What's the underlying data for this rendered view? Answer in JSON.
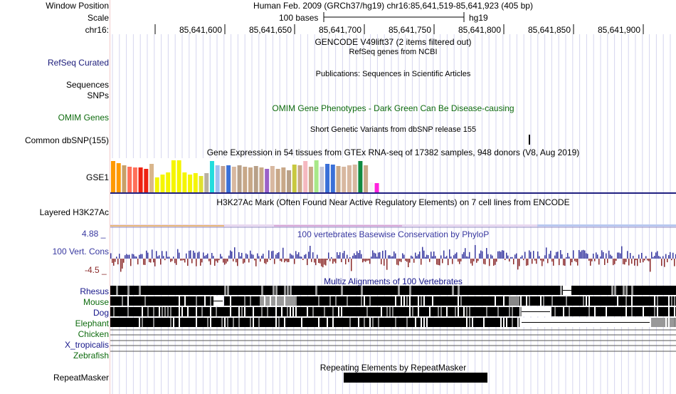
{
  "header": {
    "window_position_label": "Window Position",
    "window_position_value": "Human Feb. 2009 (GRCh37/hg19)   chr16:85,641,519-85,641,923 (405 bp)",
    "scale_label": "Scale",
    "scale_bar_text": "100 bases",
    "scale_assembly": "hg19",
    "chrom_label": "chr16:",
    "ruler_ticks": [
      "85,641,600",
      "85,641,650",
      "85,641,700",
      "85,641,750",
      "85,641,800",
      "85,641,850",
      "85,641,900"
    ]
  },
  "tracks": {
    "gencode_title": "GENCODE V49lift37 (2 items filtered out)",
    "refseq_label": "RefSeq Curated",
    "refseq_title": "RefSeq genes from NCBI",
    "publications_title": "Publications: Sequences in Scientific Articles",
    "sequences_label": "Sequences",
    "snps_label": "SNPs",
    "omim_label": "OMIM Genes",
    "omim_title": "OMIM Gene Phenotypes - Dark Green Can Be Disease-causing",
    "dbsnp_title": "Short Genetic Variants from dbSNP release 155",
    "common_dbsnp_label": "Common dbSNP(155)",
    "gtex_title": "Gene Expression in 54 tissues from GTEx RNA-seq of 17382 samples, 948 donors (V8, Aug 2019)",
    "gtex_gene_label": "GSE1",
    "h3k27ac_label": "Layered H3K27Ac",
    "h3k27ac_title": "H3K27Ac Mark (Often Found Near Active Regulatory Elements) on 7 cell lines from ENCODE",
    "cons_label": "100 Vert. Cons",
    "cons_max": "4.88 _",
    "cons_min": "-4.5 _",
    "cons_title": "100 vertebrates Basewise Conservation by PhyloP",
    "multiz_title": "Multiz Alignments of 100 Vertebrates",
    "species": [
      "Rhesus",
      "Mouse",
      "Dog",
      "Elephant",
      "Chicken",
      "X_tropicalis",
      "Zebrafish"
    ],
    "repeatmasker_label": "RepeatMasker",
    "repeatmasker_title": "Repeating Elements by RepeatMasker"
  },
  "colors": {
    "refseq_label": "#1b1b7a",
    "omim_label": "#0e6b0e",
    "cons_label": "#3838a0",
    "cons_min": "#8b2a2a",
    "species_blue": "#16168a",
    "species_green": "#0e6b0e"
  },
  "gtex_bars": [
    {
      "color": "#ff9a00",
      "h": 0.95
    },
    {
      "color": "#ff9a00",
      "h": 0.9
    },
    {
      "color": "#c8a068",
      "h": 0.82
    },
    {
      "color": "#ff6f59",
      "h": 0.78
    },
    {
      "color": "#ff6f59",
      "h": 0.75
    },
    {
      "color": "#ee2211",
      "h": 0.75
    },
    {
      "color": "#ee2211",
      "h": 0.72
    },
    {
      "color": "#d9b68c",
      "h": 0.88
    },
    {
      "color": "#f5f500",
      "h": 0.45
    },
    {
      "color": "#f5f500",
      "h": 0.55
    },
    {
      "color": "#f5f500",
      "h": 0.6
    },
    {
      "color": "#f5f500",
      "h": 0.98
    },
    {
      "color": "#f5f500",
      "h": 0.98
    },
    {
      "color": "#f5f500",
      "h": 0.6
    },
    {
      "color": "#f5f500",
      "h": 0.55
    },
    {
      "color": "#f5f500",
      "h": 0.58
    },
    {
      "color": "#e0e030",
      "h": 0.5
    },
    {
      "color": "#b8b0a0",
      "h": 0.58
    },
    {
      "color": "#22dddd",
      "h": 0.95
    },
    {
      "color": "#a0c0f0",
      "h": 0.82
    },
    {
      "color": "#c0a090",
      "h": 0.8
    },
    {
      "color": "#3a70d8",
      "h": 0.82
    },
    {
      "color": "#d8b8a0",
      "h": 0.78
    },
    {
      "color": "#b8a088",
      "h": 0.82
    },
    {
      "color": "#c8a888",
      "h": 0.78
    },
    {
      "color": "#c8a888",
      "h": 0.75
    },
    {
      "color": "#b8a088",
      "h": 0.8
    },
    {
      "color": "#c8a888",
      "h": 0.76
    },
    {
      "color": "#9a60c8",
      "h": 0.72
    },
    {
      "color": "#d8b8a0",
      "h": 0.8
    },
    {
      "color": "#c8a888",
      "h": 0.72
    },
    {
      "color": "#c8a888",
      "h": 0.75
    },
    {
      "color": "#b8a088",
      "h": 0.68
    },
    {
      "color": "#c8c840",
      "h": 0.85
    },
    {
      "color": "#c8a888",
      "h": 0.82
    },
    {
      "color": "#f5b8c0",
      "h": 0.95
    },
    {
      "color": "#c8a888",
      "h": 0.78
    },
    {
      "color": "#a8e888",
      "h": 0.98
    },
    {
      "color": "#c8c8d8",
      "h": 0.78
    },
    {
      "color": "#3a70d8",
      "h": 0.88
    },
    {
      "color": "#3a70d8",
      "h": 0.85
    },
    {
      "color": "#c8a888",
      "h": 0.8
    },
    {
      "color": "#d8b8a0",
      "h": 0.78
    },
    {
      "color": "#d8b8a0",
      "h": 0.82
    },
    {
      "color": "#d8b8a0",
      "h": 0.85
    },
    {
      "color": "#108a40",
      "h": 0.95
    },
    {
      "color": "#c8a888",
      "h": 0.82
    },
    {
      "color": "#f5f5f5",
      "h": 0.3
    },
    {
      "color": "#ff22dd",
      "h": 0.28
    }
  ]
}
